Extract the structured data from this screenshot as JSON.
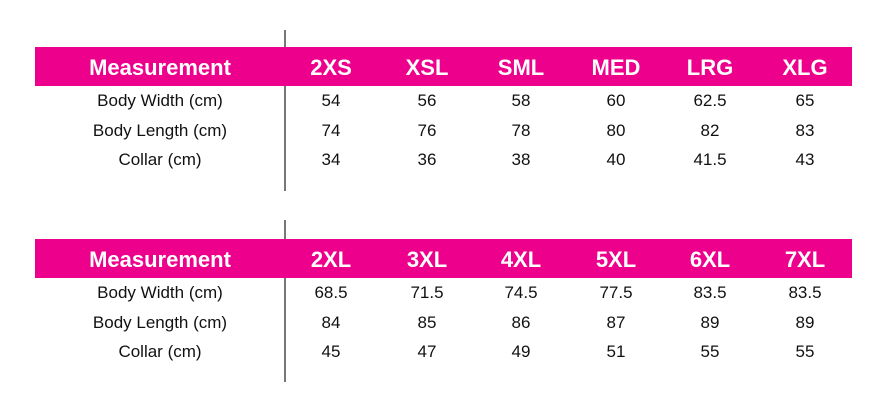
{
  "accent_color": "#ec008c",
  "tables": [
    {
      "header": [
        "Measurement",
        "2XS",
        "XSL",
        "SML",
        "MED",
        "LRG",
        "XLG"
      ],
      "rows": [
        [
          "Body Width (cm)",
          "54",
          "56",
          "58",
          "60",
          "62.5",
          "65"
        ],
        [
          "Body Length (cm)",
          "74",
          "76",
          "78",
          "80",
          "82",
          "83"
        ],
        [
          "Collar (cm)",
          "34",
          "36",
          "38",
          "40",
          "41.5",
          "43"
        ]
      ]
    },
    {
      "header": [
        "Measurement",
        "2XL",
        "3XL",
        "4XL",
        "5XL",
        "6XL",
        "7XL"
      ],
      "rows": [
        [
          "Body Width (cm)",
          "68.5",
          "71.5",
          "74.5",
          "77.5",
          "83.5",
          "83.5"
        ],
        [
          "Body Length (cm)",
          "84",
          "85",
          "86",
          "87",
          "89",
          "89"
        ],
        [
          "Collar (cm)",
          "45",
          "47",
          "49",
          "51",
          "55",
          "55"
        ]
      ]
    }
  ]
}
